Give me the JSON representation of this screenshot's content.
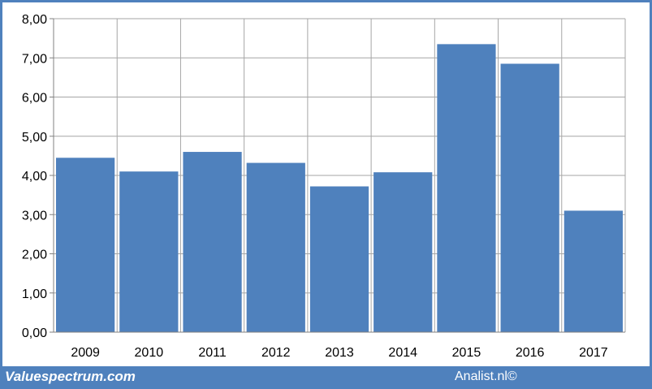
{
  "chart_data": {
    "type": "bar",
    "categories": [
      "2009",
      "2010",
      "2011",
      "2012",
      "2013",
      "2014",
      "2015",
      "2016",
      "2017"
    ],
    "values": [
      4.45,
      4.1,
      4.6,
      4.32,
      3.72,
      4.08,
      7.35,
      6.85,
      3.1
    ],
    "ylim": [
      0,
      8
    ],
    "y_ticks": [
      "0,00",
      "1,00",
      "2,00",
      "3,00",
      "4,00",
      "5,00",
      "6,00",
      "7,00",
      "8,00"
    ],
    "grid": true,
    "bar_color": "#4f81bd",
    "grid_color": "#a6a6a6"
  },
  "footer": {
    "left": "Valuespectrum.com",
    "right": "Analist.nl©"
  },
  "colors": {
    "frame": "#4f81bd",
    "background": "#ffffff"
  }
}
